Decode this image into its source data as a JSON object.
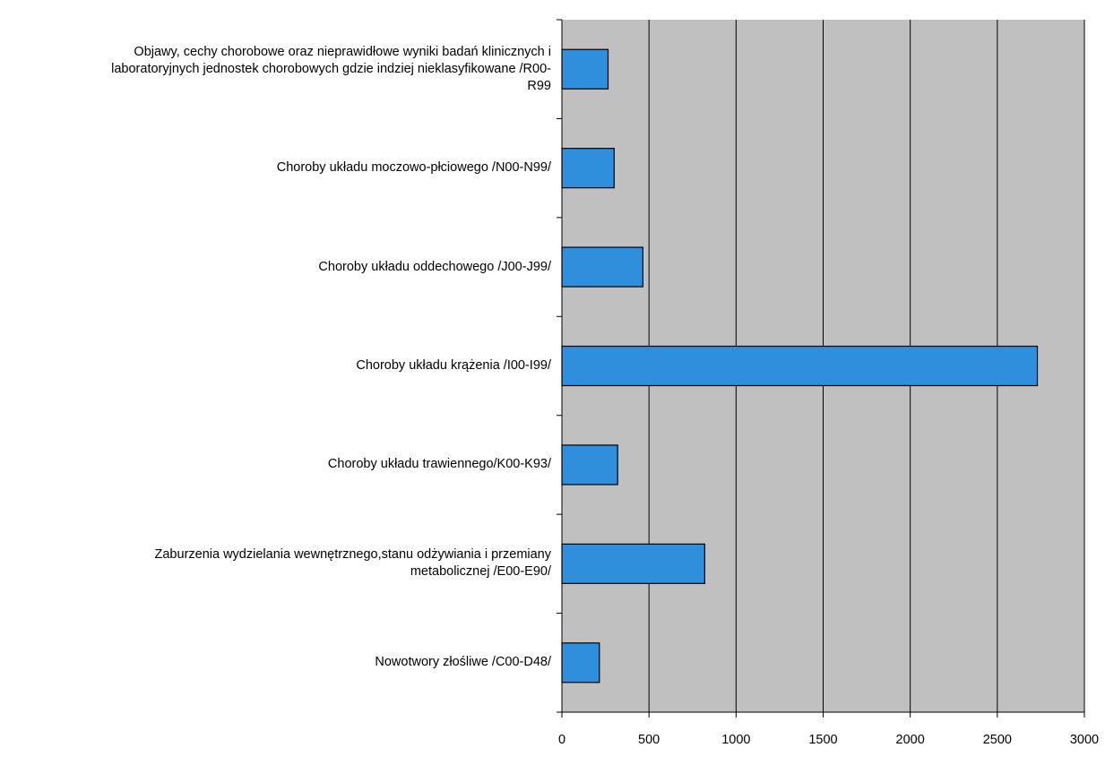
{
  "chart_data": {
    "type": "bar",
    "orientation": "horizontal",
    "categories": [
      "Objawy, cechy chorobowe oraz nieprawidłowe wyniki badań klinicznych i\nlaboratoryjnych jednostek chorobowych gdzie indziej nieklasyfikowane /R00-\nR99",
      "Choroby układu moczowo-płciowego /N00-N99/",
      "Choroby układu oddechowego /J00-J99/",
      "Choroby układu krążenia /I00-I99/",
      "Choroby układu trawiennego/K00-K93/",
      "Zaburzenia wydzielania wewnętrznego,stanu odżywiania i przemiany\nmetabolicznej /E00-E90/",
      "Nowotwory złośliwe /C00-D48/"
    ],
    "values": [
      265,
      300,
      465,
      2730,
      320,
      820,
      215
    ],
    "xlim": [
      0,
      3000
    ],
    "xticks": [
      "0",
      "500",
      "1000",
      "1500",
      "2000",
      "2500",
      "3000"
    ],
    "title": "",
    "xlabel": "",
    "ylabel": "",
    "grid": "vertical",
    "legend": "none",
    "colors": {
      "bar": "#2f8fdc",
      "bar_border": "#000000",
      "plot_bg": "#c0c0c0",
      "grid": "#000000"
    }
  }
}
